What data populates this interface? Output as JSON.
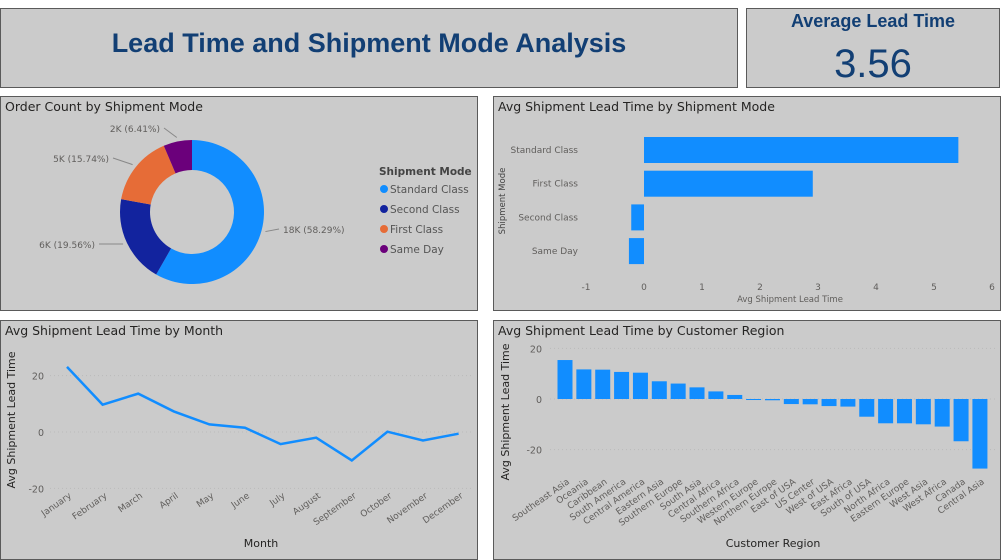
{
  "header": {
    "title": "Lead Time and Shipment Mode Analysis"
  },
  "kpi": {
    "label": "Average Lead Time",
    "value": "3.56"
  },
  "colors": {
    "accent": "#118dff",
    "title": "#123f74",
    "second_class": "#12239e",
    "first_class": "#e66c37",
    "same_day": "#6b007b"
  },
  "chart_data": [
    {
      "type": "pie",
      "donut": true,
      "title": "Order Count by Shipment Mode",
      "legend_title": "Shipment Mode",
      "legend_position": "right",
      "categories": [
        "Standard Class",
        "Second Class",
        "First Class",
        "Same Day"
      ],
      "values": [
        58.29,
        19.56,
        15.74,
        6.41
      ],
      "labels": [
        "18K (58.29%)",
        "6K (19.56%)",
        "5K (15.74%)",
        "2K (6.41%)"
      ],
      "colors": [
        "#118dff",
        "#12239e",
        "#e66c37",
        "#6b007b"
      ]
    },
    {
      "type": "bar",
      "orientation": "horizontal",
      "title": "Avg Shipment Lead Time by Shipment Mode",
      "categories": [
        "Standard Class",
        "First Class",
        "Second Class",
        "Same Day"
      ],
      "values": [
        5.42,
        2.91,
        -0.22,
        -0.26
      ],
      "xlabel": "Avg Shipment Lead Time",
      "ylabel": "Shipment Mode",
      "xlim": [
        -1,
        6
      ],
      "xticks": [
        "-1",
        "0",
        "1",
        "2",
        "3",
        "4",
        "5",
        "6"
      ]
    },
    {
      "type": "line",
      "title": "Avg Shipment Lead Time by Month",
      "categories": [
        "January",
        "February",
        "March",
        "April",
        "May",
        "June",
        "July",
        "August",
        "September",
        "October",
        "November",
        "December"
      ],
      "values": [
        23.1,
        9.7,
        13.6,
        7.3,
        2.7,
        1.5,
        -4.3,
        -2.0,
        -10.1,
        0.1,
        -3.0,
        -0.6
      ],
      "xlabel": "Month",
      "ylabel": "Avg Shipment Lead Time",
      "yticks": [
        "20",
        "0",
        "-20"
      ],
      "ylim": [
        -20,
        25
      ],
      "grid": true
    },
    {
      "type": "bar",
      "title": "Avg Shipment Lead Time by Customer Region",
      "categories": [
        "Southeast Asia",
        "Oceania",
        "Caribbean",
        "South America",
        "Central America",
        "Eastern Asia",
        "Southern Europe",
        "South Asia",
        "Central Africa",
        "Southern Africa",
        "Western Europe",
        "Northern Europe",
        "East of USA",
        "US Center",
        "West of USA",
        "East Africa",
        "South of USA",
        "North Africa",
        "Eastern Europe",
        "West Asia",
        "West Africa",
        "Canada",
        "Central Asia"
      ],
      "values": [
        15.4,
        11.7,
        11.6,
        10.7,
        10.4,
        7.0,
        6.1,
        4.6,
        3.0,
        1.6,
        -0.4,
        -0.5,
        -2.0,
        -2.1,
        -2.8,
        -3.0,
        -7.0,
        -9.6,
        -9.6,
        -10.0,
        -10.9,
        -16.7,
        -27.5
      ],
      "xlabel": "Customer Region",
      "ylabel": "Avg Shipment Lead Time",
      "yticks": [
        "20",
        "0",
        "-20"
      ],
      "ylim": [
        -28,
        20
      ],
      "grid": true
    }
  ]
}
